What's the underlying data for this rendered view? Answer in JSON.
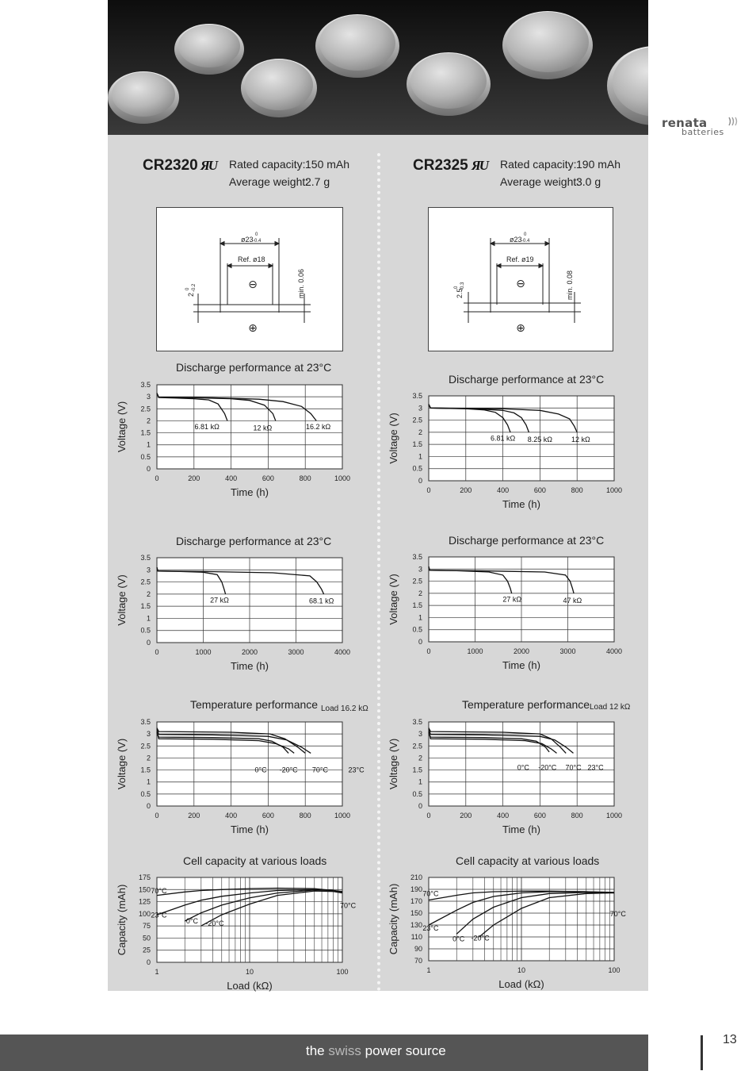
{
  "brand": {
    "name": "renata",
    "sub": "batteries"
  },
  "footer": {
    "tagline_pre": "the",
    "tagline_accent": "swiss",
    "tagline_post": "power source",
    "page_number": "13"
  },
  "products": [
    {
      "model": "CR2320",
      "cert_icon": "ul-recognized-icon",
      "rated_capacity_label": "Rated capacity:",
      "rated_capacity": "150 mAh",
      "weight_label": "Average weight:",
      "weight": "2.7 g",
      "drawing": {
        "diameter": "ø23",
        "diam_tol_top": "0",
        "diam_tol_bottom": "-0.4",
        "ref_diameter": "Ref. ø18",
        "height": "2",
        "height_tol_top": "0",
        "height_tol_bottom": "-0.2",
        "min_label": "min. 0.06",
        "neg_symbol": "⊖",
        "pos_symbol": "⊕"
      }
    },
    {
      "model": "CR2325",
      "cert_icon": "ul-recognized-icon",
      "rated_capacity_label": "Rated capacity:",
      "rated_capacity": "190 mAh",
      "weight_label": "Average weight:",
      "weight": "3.0 g",
      "drawing": {
        "diameter": "ø23",
        "diam_tol_top": "0",
        "diam_tol_bottom": "-0.4",
        "ref_diameter": "Ref. ø19",
        "height": "2.5",
        "height_tol_top": "0",
        "height_tol_bottom": "-0.3",
        "min_label": "min. 0.08",
        "neg_symbol": "⊖",
        "pos_symbol": "⊕"
      }
    }
  ],
  "chart_data": [
    {
      "id": "cr2320-discharge-1",
      "type": "line",
      "title": "Discharge performance at 23°C",
      "xlabel": "Time (h)",
      "ylabel": "Voltage (V)",
      "xlim": [
        0,
        1000
      ],
      "ylim": [
        0,
        3.5
      ],
      "xticks": [
        0,
        200,
        400,
        600,
        800,
        1000
      ],
      "xtick_labels": [
        "0",
        "200",
        "400",
        "600",
        "800",
        "1000"
      ],
      "yticks": [
        0,
        0.5,
        1,
        1.5,
        2,
        2.5,
        3,
        3.5
      ],
      "ytick_labels": [
        "0",
        "0.5",
        "1",
        "1.5",
        "2",
        "2.5",
        "3",
        "3.5"
      ],
      "series": [
        {
          "name": "6.81 kΩ",
          "x": [
            0,
            10,
            100,
            200,
            280,
            330,
            365,
            380
          ],
          "y": [
            3.15,
            2.97,
            2.95,
            2.92,
            2.87,
            2.7,
            2.3,
            2.0
          ]
        },
        {
          "name": "12 kΩ",
          "x": [
            0,
            10,
            200,
            400,
            500,
            580,
            625,
            640
          ],
          "y": [
            3.15,
            2.98,
            2.96,
            2.92,
            2.85,
            2.65,
            2.3,
            2.0
          ]
        },
        {
          "name": "16.2 kΩ",
          "x": [
            0,
            10,
            300,
            550,
            680,
            780,
            830,
            860
          ],
          "y": [
            3.15,
            2.98,
            2.96,
            2.9,
            2.8,
            2.6,
            2.3,
            2.0
          ]
        }
      ],
      "annotations": [
        {
          "text": "6.81 kΩ",
          "x": 270,
          "y": 1.65
        },
        {
          "text": "12 kΩ",
          "x": 570,
          "y": 1.6
        },
        {
          "text": "16.2 kΩ",
          "x": 870,
          "y": 1.65
        }
      ]
    },
    {
      "id": "cr2320-discharge-2",
      "type": "line",
      "title": "Discharge performance at 23°C",
      "xlabel": "Time (h)",
      "ylabel": "Voltage (V)",
      "xlim": [
        0,
        4000
      ],
      "ylim": [
        0,
        3.5
      ],
      "xticks": [
        0,
        1000,
        2000,
        3000,
        4000
      ],
      "xtick_labels": [
        "0",
        "1000",
        "2000",
        "3000",
        "4000"
      ],
      "yticks": [
        0,
        0.5,
        1,
        1.5,
        2,
        2.5,
        3,
        3.5
      ],
      "ytick_labels": [
        "0",
        "0.5",
        "1",
        "1.5",
        "2",
        "2.5",
        "3",
        "3.5"
      ],
      "series": [
        {
          "name": "27 kΩ",
          "x": [
            0,
            20,
            500,
            1000,
            1300,
            1400,
            1450,
            1480
          ],
          "y": [
            3.1,
            2.95,
            2.93,
            2.9,
            2.8,
            2.5,
            2.2,
            2.0
          ]
        },
        {
          "name": "68.1 kΩ",
          "x": [
            0,
            20,
            1000,
            2500,
            3300,
            3450,
            3550,
            3600
          ],
          "y": [
            3.1,
            2.95,
            2.93,
            2.88,
            2.75,
            2.5,
            2.2,
            2.0
          ]
        }
      ],
      "annotations": [
        {
          "text": "27 kΩ",
          "x": 1350,
          "y": 1.65
        },
        {
          "text": "68.1 kΩ",
          "x": 3550,
          "y": 1.62
        }
      ]
    },
    {
      "id": "cr2320-temperature",
      "type": "line",
      "title": "Temperature performance",
      "subtitle": "Load 16.2 kΩ",
      "xlabel": "Time (h)",
      "ylabel": "Voltage (V)",
      "xlim": [
        0,
        1000
      ],
      "ylim": [
        0,
        3.5
      ],
      "xticks": [
        0,
        200,
        400,
        600,
        800,
        1000
      ],
      "xtick_labels": [
        "0",
        "200",
        "400",
        "600",
        "800",
        "1000"
      ],
      "yticks": [
        0,
        0.5,
        1,
        1.5,
        2,
        2.5,
        3,
        3.5
      ],
      "ytick_labels": [
        "0",
        "0.5",
        "1",
        "1.5",
        "2",
        "2.5",
        "3",
        "3.5"
      ],
      "series": [
        {
          "name": "0°C",
          "x": [
            0,
            10,
            300,
            550,
            620,
            680,
            710
          ],
          "y": [
            3.05,
            2.87,
            2.85,
            2.8,
            2.7,
            2.45,
            2.2
          ]
        },
        {
          "name": "-20°C",
          "x": [
            0,
            10,
            300,
            550,
            640,
            710,
            740
          ],
          "y": [
            3.1,
            2.8,
            2.78,
            2.72,
            2.6,
            2.38,
            2.2
          ]
        },
        {
          "name": "70°C",
          "x": [
            0,
            10,
            400,
            610,
            690,
            760,
            800
          ],
          "y": [
            3.25,
            3.1,
            3.07,
            3.0,
            2.8,
            2.45,
            2.2
          ]
        },
        {
          "name": "23°C",
          "x": [
            0,
            10,
            300,
            600,
            700,
            780,
            830
          ],
          "y": [
            3.2,
            2.98,
            2.96,
            2.9,
            2.75,
            2.45,
            2.2
          ]
        }
      ],
      "annotations": [
        {
          "text": "0°C",
          "x": 560,
          "y": 1.4
        },
        {
          "text": "-20°C",
          "x": 710,
          "y": 1.4
        },
        {
          "text": "70°C",
          "x": 880,
          "y": 1.4
        },
        {
          "text": "23°C",
          "x": 1075,
          "y": 1.4
        }
      ]
    },
    {
      "id": "cr2320-capacity",
      "type": "line",
      "title": "Cell capacity at various loads",
      "xlabel": "Load (kΩ)",
      "ylabel": "Capacity (mAh)",
      "xscale": "log",
      "xlim": [
        1,
        100
      ],
      "ylim": [
        0,
        175
      ],
      "xticks": [
        1,
        10,
        100
      ],
      "xtick_labels": [
        "1",
        "10",
        "100"
      ],
      "yticks": [
        0,
        25,
        50,
        75,
        100,
        125,
        150,
        175
      ],
      "ytick_labels": [
        "0",
        "25",
        "50",
        "75",
        "100",
        "125",
        "150",
        "175"
      ],
      "series": [
        {
          "name": "70°C",
          "x": [
            1,
            2,
            3,
            5,
            10,
            20,
            50,
            80,
            100
          ],
          "y": [
            138,
            145,
            148,
            150,
            152,
            153,
            152,
            148,
            145
          ]
        },
        {
          "name": "23°C",
          "x": [
            1,
            2,
            3,
            5,
            10,
            20,
            50,
            80,
            100
          ],
          "y": [
            98,
            118,
            128,
            136,
            143,
            148,
            150,
            148,
            146
          ]
        },
        {
          "name": "0°C",
          "x": [
            2,
            3,
            5,
            10,
            20,
            50,
            80,
            100
          ],
          "y": [
            85,
            102,
            118,
            133,
            143,
            149,
            148,
            145
          ]
        },
        {
          "name": "-20°C",
          "x": [
            3,
            5,
            10,
            20,
            50,
            80,
            100
          ],
          "y": [
            75,
            98,
            120,
            138,
            147,
            146,
            143
          ]
        }
      ],
      "annotations": [
        {
          "text": "70°C",
          "x": 1.05,
          "y": 142
        },
        {
          "text": "23°C",
          "x": 1.05,
          "y": 92
        },
        {
          "text": "0°C",
          "x": 2.4,
          "y": 80
        },
        {
          "text": "-20°C",
          "x": 4.2,
          "y": 75
        },
        {
          "text": "70°C",
          "x": 115,
          "y": 112
        }
      ]
    },
    {
      "id": "cr2325-discharge-1",
      "type": "line",
      "title": "Discharge performance at 23°C",
      "xlabel": "Time (h)",
      "ylabel": "Voltage (V)",
      "xlim": [
        0,
        1000
      ],
      "ylim": [
        0,
        3.5
      ],
      "xticks": [
        0,
        200,
        400,
        600,
        800,
        1000
      ],
      "xtick_labels": [
        "0",
        "200",
        "400",
        "600",
        "800",
        "1000"
      ],
      "yticks": [
        0,
        0.5,
        1,
        1.5,
        2,
        2.5,
        3,
        3.5
      ],
      "ytick_labels": [
        "0",
        "0.5",
        "1",
        "1.5",
        "2",
        "2.5",
        "3",
        "3.5"
      ],
      "series": [
        {
          "name": "6.81 kΩ",
          "x": [
            0,
            10,
            200,
            300,
            360,
            400,
            425,
            440
          ],
          "y": [
            3.15,
            3.0,
            2.97,
            2.92,
            2.82,
            2.6,
            2.3,
            2.0
          ]
        },
        {
          "name": "8.25 kΩ",
          "x": [
            0,
            10,
            250,
            400,
            460,
            500,
            525,
            540
          ],
          "y": [
            3.15,
            3.0,
            2.97,
            2.9,
            2.8,
            2.6,
            2.3,
            2.0
          ]
        },
        {
          "name": "12 kΩ",
          "x": [
            0,
            10,
            400,
            600,
            700,
            760,
            785,
            800
          ],
          "y": [
            3.15,
            3.0,
            2.97,
            2.9,
            2.75,
            2.55,
            2.25,
            2.0
          ]
        }
      ],
      "annotations": [
        {
          "text": "6.81 kΩ",
          "x": 400,
          "y": 1.65
        },
        {
          "text": "8.25 kΩ",
          "x": 600,
          "y": 1.6
        },
        {
          "text": "12 kΩ",
          "x": 820,
          "y": 1.6
        }
      ]
    },
    {
      "id": "cr2325-discharge-2",
      "type": "line",
      "title": "Discharge performance at 23°C",
      "xlabel": "Time (h)",
      "ylabel": "Voltage (V)",
      "xlim": [
        0,
        4000
      ],
      "ylim": [
        0,
        3.5
      ],
      "xticks": [
        0,
        1000,
        2000,
        3000,
        4000
      ],
      "xtick_labels": [
        "0",
        "1000",
        "2000",
        "3000",
        "4000"
      ],
      "yticks": [
        0,
        0.5,
        1,
        1.5,
        2,
        2.5,
        3,
        3.5
      ],
      "ytick_labels": [
        "0",
        "0.5",
        "1",
        "1.5",
        "2",
        "2.5",
        "3",
        "3.5"
      ],
      "series": [
        {
          "name": "27 kΩ",
          "x": [
            0,
            20,
            600,
            1300,
            1600,
            1700,
            1760,
            1790
          ],
          "y": [
            3.1,
            2.95,
            2.93,
            2.88,
            2.75,
            2.5,
            2.2,
            2.0
          ]
        },
        {
          "name": "47 kΩ",
          "x": [
            0,
            20,
            1000,
            2500,
            2950,
            3050,
            3100,
            3130
          ],
          "y": [
            3.1,
            2.95,
            2.93,
            2.88,
            2.75,
            2.5,
            2.2,
            2.0
          ]
        }
      ],
      "annotations": [
        {
          "text": "27 kΩ",
          "x": 1800,
          "y": 1.65
        },
        {
          "text": "47 kΩ",
          "x": 3100,
          "y": 1.6
        }
      ]
    },
    {
      "id": "cr2325-temperature",
      "type": "line",
      "title": "Temperature performance",
      "subtitle": "Load 12 kΩ",
      "xlabel": "Time (h)",
      "ylabel": "Voltage (V)",
      "xlim": [
        0,
        1000
      ],
      "ylim": [
        0,
        3.5
      ],
      "xticks": [
        0,
        200,
        400,
        600,
        800,
        1000
      ],
      "xtick_labels": [
        "0",
        "200",
        "400",
        "600",
        "800",
        "1000"
      ],
      "yticks": [
        0,
        0.5,
        1,
        1.5,
        2,
        2.5,
        3,
        3.5
      ],
      "ytick_labels": [
        "0",
        "0.5",
        "1",
        "1.5",
        "2",
        "2.5",
        "3",
        "3.5"
      ],
      "series": [
        {
          "name": "0°C",
          "x": [
            0,
            10,
            300,
            500,
            580,
            630,
            650
          ],
          "y": [
            3.05,
            2.87,
            2.85,
            2.8,
            2.7,
            2.45,
            2.25
          ]
        },
        {
          "name": "-20°C",
          "x": [
            0,
            10,
            300,
            520,
            610,
            660,
            690
          ],
          "y": [
            3.1,
            2.8,
            2.78,
            2.72,
            2.6,
            2.38,
            2.2
          ]
        },
        {
          "name": "70°C",
          "x": [
            0,
            10,
            400,
            600,
            660,
            710,
            740
          ],
          "y": [
            3.25,
            3.1,
            3.07,
            3.0,
            2.8,
            2.45,
            2.2
          ]
        },
        {
          "name": "23°C",
          "x": [
            0,
            10,
            300,
            600,
            680,
            740,
            780
          ],
          "y": [
            3.2,
            2.98,
            2.96,
            2.9,
            2.75,
            2.45,
            2.2
          ]
        }
      ],
      "annotations": [
        {
          "text": "0°C",
          "x": 510,
          "y": 1.5
        },
        {
          "text": "-20°C",
          "x": 640,
          "y": 1.5
        },
        {
          "text": "70°C",
          "x": 780,
          "y": 1.5
        },
        {
          "text": "23°C",
          "x": 900,
          "y": 1.5
        }
      ]
    },
    {
      "id": "cr2325-capacity",
      "type": "line",
      "title": "Cell capacity at various loads",
      "xlabel": "Load (kΩ)",
      "ylabel": "Capacity (mAh)",
      "xscale": "log",
      "xlim": [
        1,
        100
      ],
      "ylim": [
        70,
        210
      ],
      "xticks": [
        1,
        10,
        100
      ],
      "xtick_labels": [
        "1",
        "10",
        "100"
      ],
      "yticks": [
        70,
        90,
        110,
        130,
        150,
        170,
        190,
        210
      ],
      "ytick_labels": [
        "70",
        "90",
        "110",
        "130",
        "150",
        "170",
        "190",
        "210"
      ],
      "series": [
        {
          "name": "70°C",
          "x": [
            1,
            2,
            3,
            5,
            10,
            20,
            50,
            100
          ],
          "y": [
            172,
            180,
            184,
            186,
            187,
            187,
            186,
            184
          ]
        },
        {
          "name": "23°C",
          "x": [
            1,
            2,
            3,
            5,
            10,
            20,
            50,
            100
          ],
          "y": [
            130,
            155,
            168,
            178,
            184,
            186,
            186,
            185
          ]
        },
        {
          "name": "0°C",
          "x": [
            2,
            3,
            5,
            10,
            20,
            50,
            100
          ],
          "y": [
            115,
            140,
            160,
            176,
            183,
            185,
            184
          ]
        },
        {
          "name": "-20°C",
          "x": [
            3.5,
            5,
            10,
            20,
            50,
            100
          ],
          "y": [
            110,
            130,
            158,
            176,
            183,
            184
          ]
        }
      ],
      "annotations": [
        {
          "text": "70°C",
          "x": 1.05,
          "y": 179
        },
        {
          "text": "23°C",
          "x": 1.05,
          "y": 121
        },
        {
          "text": "0°C",
          "x": 2.1,
          "y": 103
        },
        {
          "text": "-20°C",
          "x": 3.6,
          "y": 104
        },
        {
          "text": "70°C",
          "x": 110,
          "y": 145
        }
      ]
    }
  ]
}
